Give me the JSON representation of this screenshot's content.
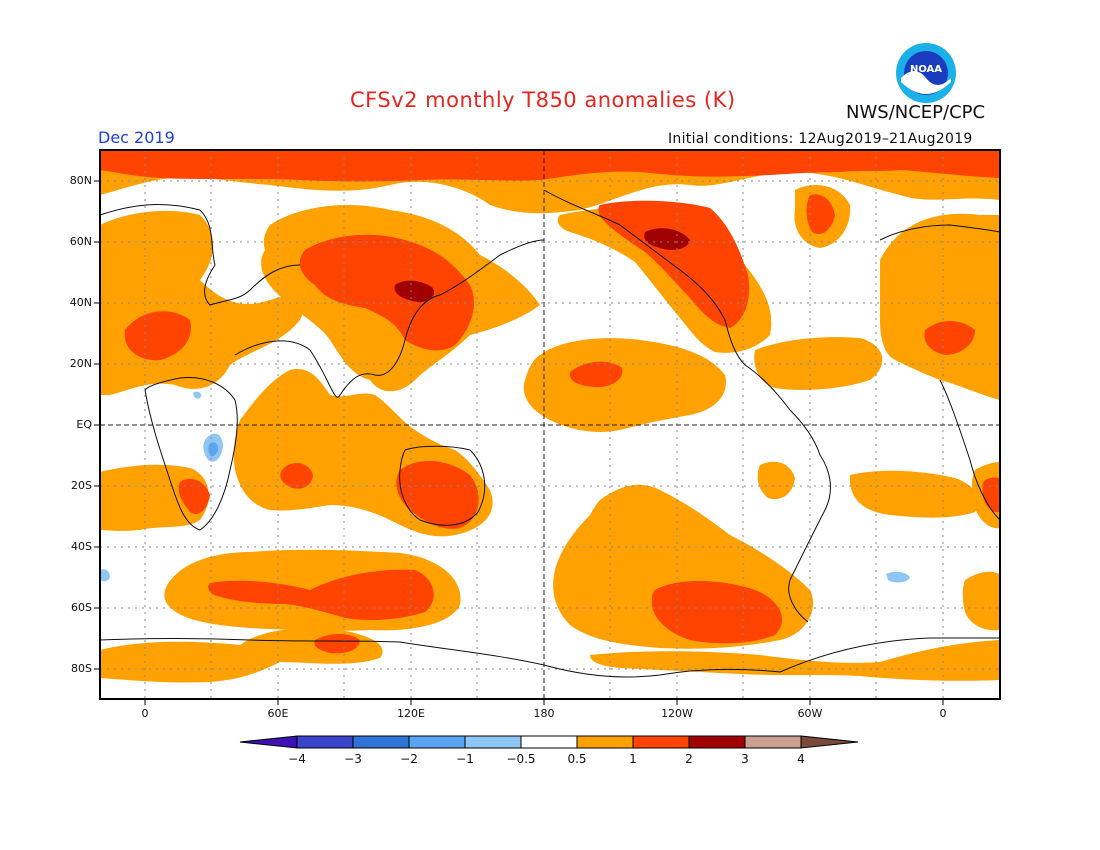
{
  "title": "CFSv2 monthly T850 anomalies (K)",
  "valid_month": "Dec 2019",
  "initial_conditions": "Initial conditions: 12Aug2019–21Aug2019",
  "agency": "NWS/NCEP/CPC",
  "logo_text": "NOAA",
  "colors": {
    "c_neg4": "#3a12b5",
    "c_neg3": "#3a45cc",
    "c_neg2": "#2f73d6",
    "c_neg1": "#5ba4ef",
    "c_neg05": "#8ec6f5",
    "c_zero": "#ffffff",
    "c_pos05": "#ffa100",
    "c_pos1": "#ff4300",
    "c_pos2": "#e61a00",
    "c_pos3": "#a00000",
    "c_pos4": "#c8a090",
    "c_pos5": "#7a4a3a"
  },
  "latitude_labels": [
    "80N",
    "60N",
    "40N",
    "20N",
    "EQ",
    "20S",
    "40S",
    "60S",
    "80S"
  ],
  "longitude_labels": [
    "0",
    "60E",
    "120E",
    "180",
    "120W",
    "60W",
    "0"
  ],
  "colorbar": {
    "labels": [
      "−4",
      "−3",
      "−2",
      "−1",
      "−0.5",
      "0.5",
      "1",
      "2",
      "3",
      "4"
    ],
    "colors": [
      "#3a12b5",
      "#3a45cc",
      "#2f73d6",
      "#5ba4ef",
      "#8ec6f5",
      "#ffffff",
      "#ffa100",
      "#ff4300",
      "#a00000",
      "#c8a090",
      "#7a4a3a"
    ]
  }
}
